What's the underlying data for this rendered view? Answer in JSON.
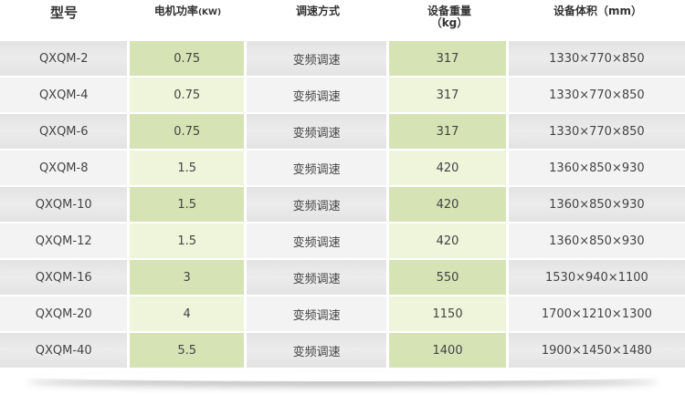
{
  "headers": [
    {
      "line1": "型号",
      "line2": ""
    },
    {
      "line1": "电机功率",
      "unit": "(KW)",
      "line2": ""
    },
    {
      "line1": "调速方式",
      "line2": ""
    },
    {
      "line1": "设备重量",
      "line2": "（kg）"
    },
    {
      "line1": "设备体积（mm）",
      "line2": ""
    }
  ],
  "rows": [
    {
      "model": "QXQM-2",
      "power": "0.75",
      "speed": "变频调速",
      "weight": "317",
      "volume": "1330×770×850"
    },
    {
      "model": "QXQM-4",
      "power": "0.75",
      "speed": "变频调速",
      "weight": "317",
      "volume": "1330×770×850"
    },
    {
      "model": "QXQM-6",
      "power": "0.75",
      "speed": "变频调速",
      "weight": "317",
      "volume": "1330×770×850"
    },
    {
      "model": "QXQM-8",
      "power": "1.5",
      "speed": "变频调速",
      "weight": "420",
      "volume": "1360×850×930"
    },
    {
      "model": "QXQM-10",
      "power": "1.5",
      "speed": "变频调速",
      "weight": "420",
      "volume": "1360×850×930"
    },
    {
      "model": "QXQM-12",
      "power": "1.5",
      "speed": "变频调速",
      "weight": "420",
      "volume": "1360×850×930"
    },
    {
      "model": "QXQM-16",
      "power": "3",
      "speed": "变频调速",
      "weight": "550",
      "volume": "1530×940×1100"
    },
    {
      "model": "QXQM-20",
      "power": "4",
      "speed": "变频调速",
      "weight": "1150",
      "volume": "1700×1210×1300"
    },
    {
      "model": "QXQM-40",
      "power": "5.5",
      "speed": "变频调速",
      "weight": "1400",
      "volume": "1900×1450×1480"
    }
  ],
  "colors": {
    "gray_dark": "#e6e6e6",
    "gray_light": "#f3f3f3",
    "green_dark": "#d6e3b5",
    "green_light": "#eef5da"
  }
}
